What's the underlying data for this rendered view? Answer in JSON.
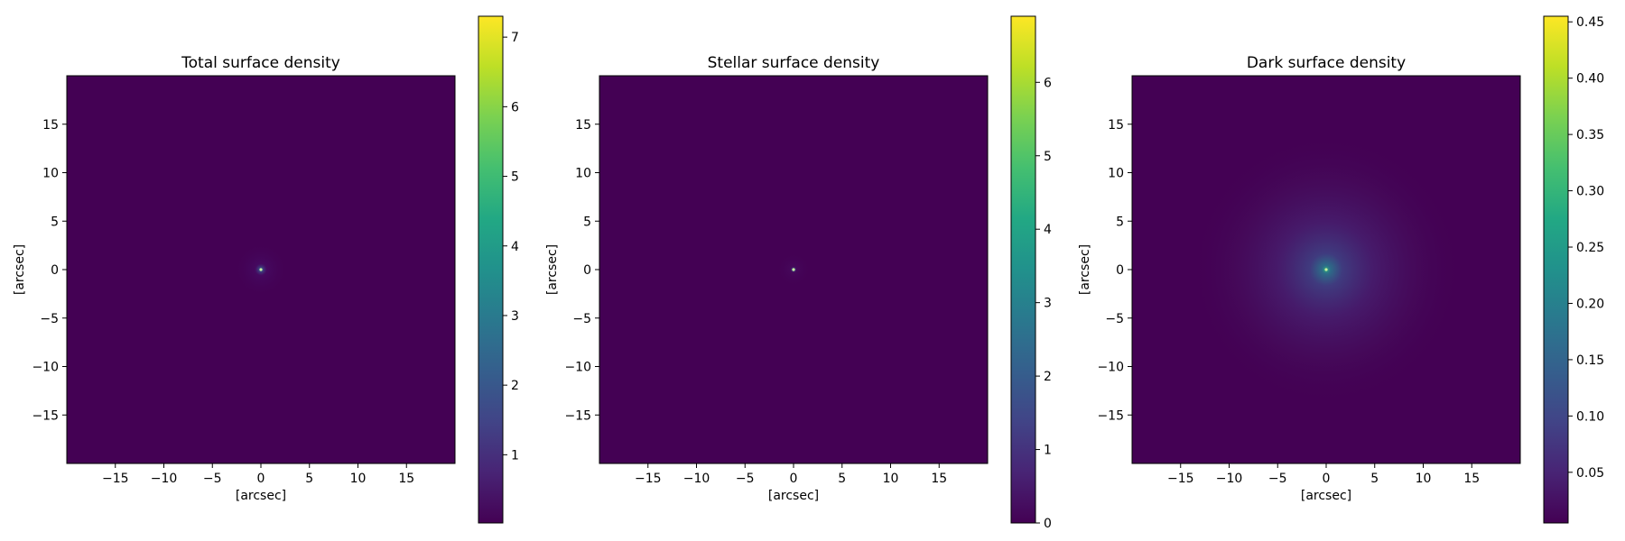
{
  "colormap": "viridis",
  "chart_data": [
    {
      "type": "heatmap",
      "title": "Total surface density",
      "xlabel": "[arcsec]",
      "ylabel": "[arcsec]",
      "xlim": [
        -20,
        20
      ],
      "ylim": [
        -20,
        20
      ],
      "xticks": [
        -15,
        -10,
        -5,
        0,
        5,
        10,
        15
      ],
      "yticks": [
        15,
        10,
        5,
        0,
        -5,
        -10,
        -15
      ],
      "center": [
        0,
        0
      ],
      "peak": 7.3,
      "colorbar": {
        "min": 0.02,
        "max": 7.3,
        "ticks": [
          1,
          2,
          3,
          4,
          5,
          6,
          7
        ]
      }
    },
    {
      "type": "heatmap",
      "title": "Stellar surface density",
      "xlabel": "[arcsec]",
      "ylabel": "[arcsec]",
      "xlim": [
        -20,
        20
      ],
      "ylim": [
        -20,
        20
      ],
      "xticks": [
        -15,
        -10,
        -5,
        0,
        5,
        10,
        15
      ],
      "yticks": [
        15,
        10,
        5,
        0,
        -5,
        -10,
        -15
      ],
      "center": [
        0,
        0
      ],
      "peak": 6.9,
      "colorbar": {
        "min": 0,
        "max": 6.9,
        "ticks": [
          0,
          1,
          2,
          3,
          4,
          5,
          6
        ]
      }
    },
    {
      "type": "heatmap",
      "title": "Dark surface density",
      "xlabel": "[arcsec]",
      "ylabel": "[arcsec]",
      "xlim": [
        -20,
        20
      ],
      "ylim": [
        -20,
        20
      ],
      "xticks": [
        -15,
        -10,
        -5,
        0,
        5,
        10,
        15
      ],
      "yticks": [
        15,
        10,
        5,
        0,
        -5,
        -10,
        -15
      ],
      "center": [
        0,
        0
      ],
      "peak": 0.455,
      "colorbar": {
        "min": 0.005,
        "max": 0.455,
        "ticks": [
          0.05,
          0.1,
          0.15,
          0.2,
          0.25,
          0.3,
          0.35,
          0.4,
          0.45
        ],
        "tick_labels": [
          "0.05",
          "0.10",
          "0.15",
          "0.20",
          "0.25",
          "0.30",
          "0.35",
          "0.40",
          "0.45"
        ]
      }
    }
  ]
}
